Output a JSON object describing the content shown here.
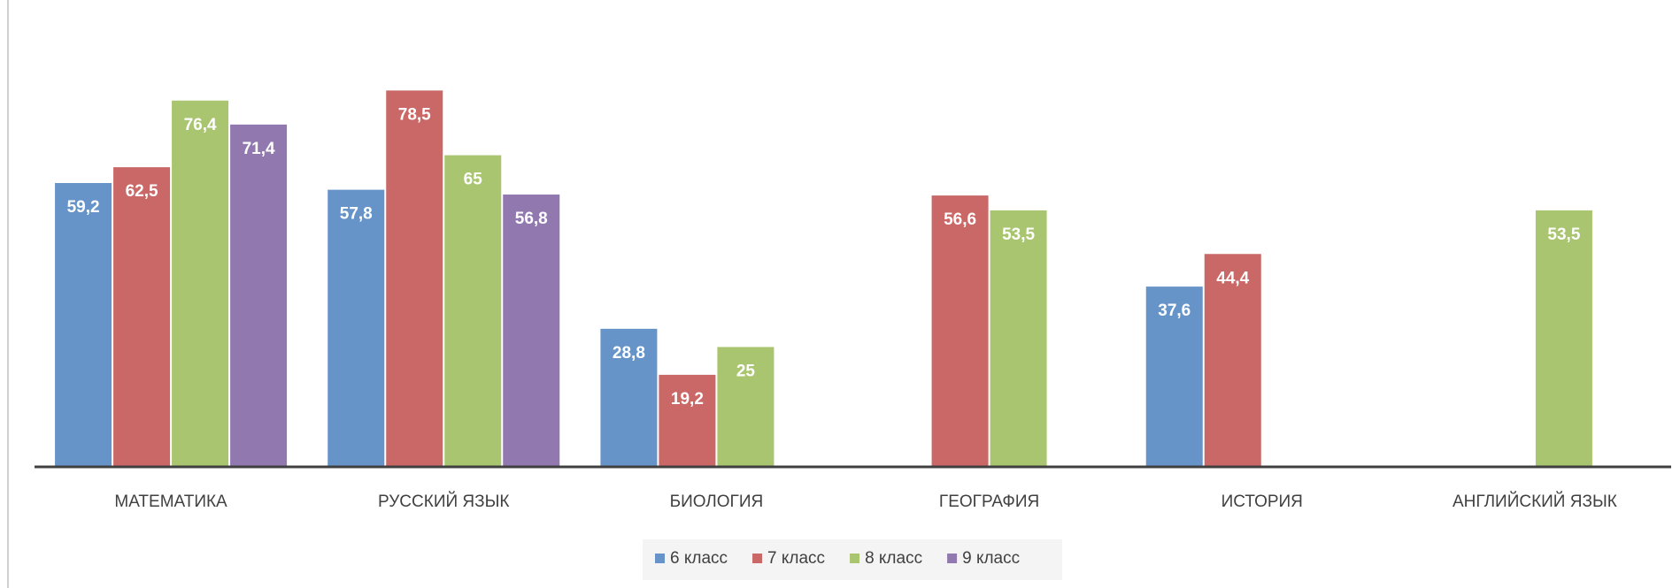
{
  "chart_data": {
    "type": "bar",
    "categories": [
      "МАТЕМАТИКА",
      "РУССКИЙ ЯЗЫК",
      "БИОЛОГИЯ",
      "ГЕОГРАФИЯ",
      "ИСТОРИЯ",
      "АНГЛИЙСКИЙ ЯЗЫК"
    ],
    "series": [
      {
        "name": "6 класс",
        "color": "#6794c8",
        "values": [
          59.2,
          57.8,
          28.8,
          null,
          37.6,
          null
        ],
        "value_labels": [
          "59,2",
          "57,8",
          "28,8",
          null,
          "37,6",
          null
        ]
      },
      {
        "name": "7 класс",
        "color": "#c96866",
        "values": [
          62.5,
          78.5,
          19.2,
          56.6,
          44.4,
          null
        ],
        "value_labels": [
          "62,5",
          "78,5",
          "19,2",
          "56,6",
          "44,4",
          null
        ]
      },
      {
        "name": "8 класс",
        "color": "#a9c56f",
        "values": [
          76.4,
          65,
          25,
          53.5,
          null,
          53.5
        ],
        "value_labels": [
          "76,4",
          "65",
          "25",
          "53,5",
          null,
          "53,5"
        ]
      },
      {
        "name": "9 класс",
        "color": "#9179b0",
        "values": [
          71.4,
          56.8,
          null,
          null,
          null,
          null
        ],
        "value_labels": [
          "71,4",
          "56,8",
          null,
          null,
          null,
          null
        ]
      }
    ],
    "ylim": [
      0,
      90
    ],
    "grid": false,
    "legend": "bottom"
  }
}
